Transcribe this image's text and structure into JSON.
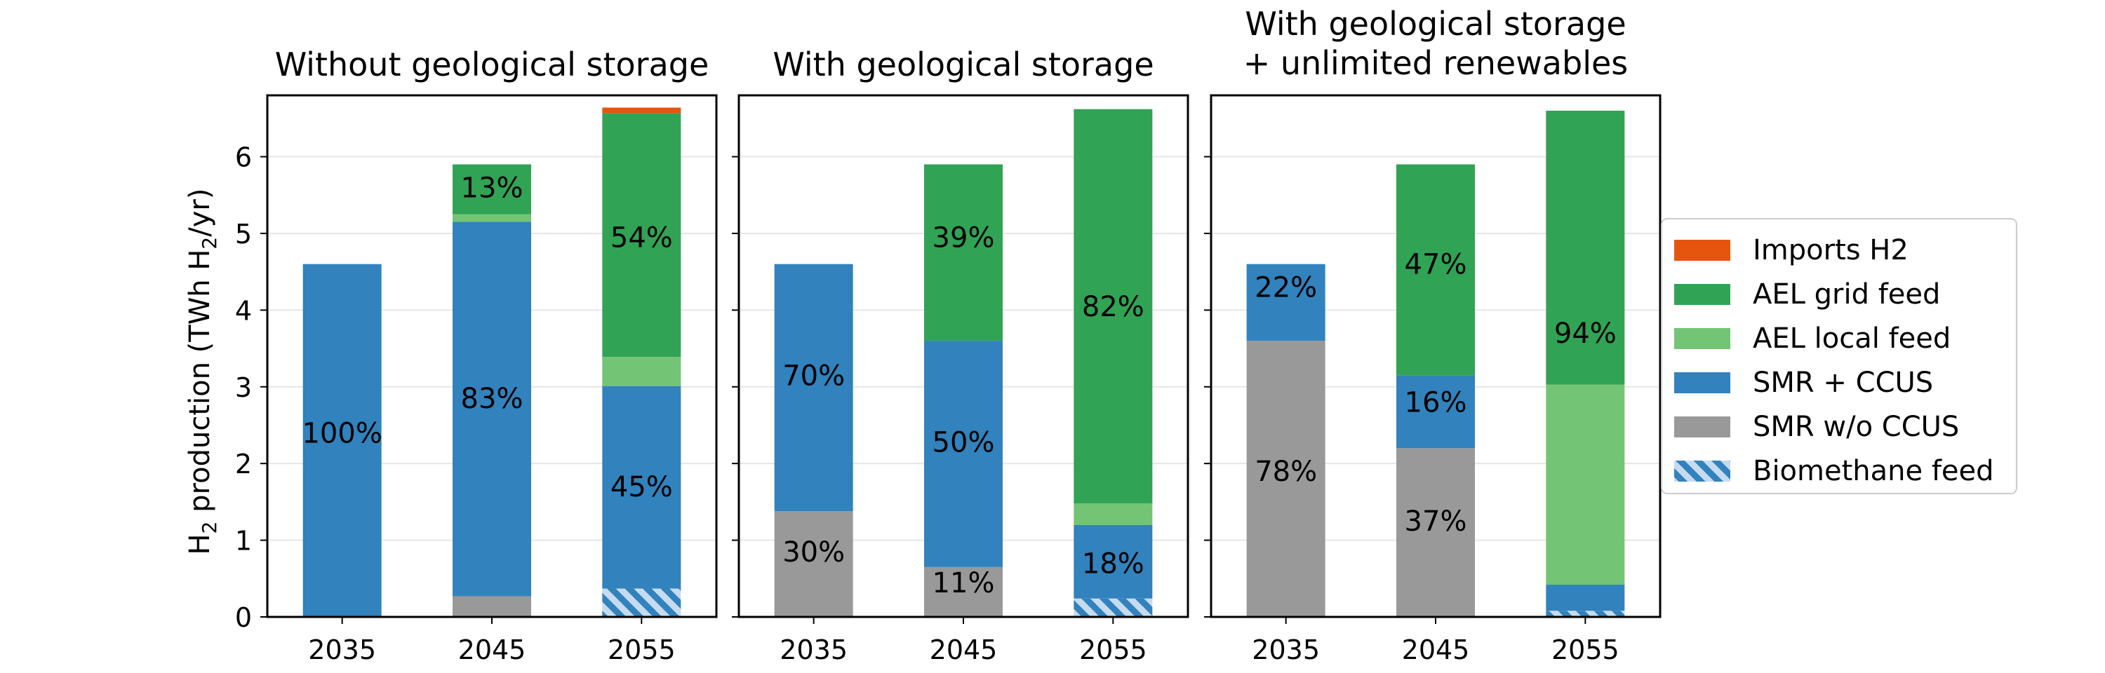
{
  "figure": {
    "ylabel_main": "H",
    "ylabel_sub": "2",
    "ylabel_rest": " production  (TWh H",
    "ylabel_sub2": "2",
    "ylabel_end": "/yr)"
  },
  "chart_data": [
    {
      "type": "bar",
      "stacked": true,
      "title_lines": [
        "Without geological storage"
      ],
      "categories": [
        "2035",
        "2045",
        "2055"
      ],
      "ylim": [
        0,
        6.8
      ],
      "yticks": [
        0,
        1,
        2,
        3,
        4,
        5,
        6
      ],
      "grid": true,
      "series": [
        {
          "name": "SMR w/o CCUS",
          "color": "#999999",
          "values": [
            0,
            0.27,
            0
          ]
        },
        {
          "name": "Biomethane feed",
          "color": "#c6dbef",
          "hatch": true,
          "values": [
            0,
            0,
            0.37
          ]
        },
        {
          "name": "SMR + CCUS",
          "color": "#3182bd",
          "values": [
            4.6,
            4.88,
            2.64
          ]
        },
        {
          "name": "AEL local feed",
          "color": "#74c476",
          "values": [
            0,
            0.1,
            0.38
          ]
        },
        {
          "name": "AEL grid feed",
          "color": "#31a354",
          "values": [
            0,
            0.65,
            3.18
          ]
        },
        {
          "name": "Imports H2",
          "color": "#e6550d",
          "values": [
            0,
            0,
            0.07
          ]
        }
      ],
      "labels": [
        {
          "category": 0,
          "y": 2.4,
          "text": "100%"
        },
        {
          "category": 1,
          "y": 2.85,
          "text": "83%"
        },
        {
          "category": 1,
          "y": 5.6,
          "text": "13%"
        },
        {
          "category": 2,
          "y": 1.7,
          "text": "45%"
        },
        {
          "category": 2,
          "y": 4.95,
          "text": "54%"
        }
      ]
    },
    {
      "type": "bar",
      "stacked": true,
      "title_lines": [
        "With geological storage"
      ],
      "categories": [
        "2035",
        "2045",
        "2055"
      ],
      "ylim": [
        0,
        6.8
      ],
      "yticks": [
        0,
        1,
        2,
        3,
        4,
        5,
        6
      ],
      "grid": true,
      "series": [
        {
          "name": "SMR w/o CCUS",
          "color": "#999999",
          "values": [
            1.38,
            0.65,
            0
          ]
        },
        {
          "name": "Biomethane feed",
          "color": "#c6dbef",
          "hatch": true,
          "values": [
            0,
            0,
            0.24
          ]
        },
        {
          "name": "SMR + CCUS",
          "color": "#3182bd",
          "values": [
            3.22,
            2.95,
            0.96
          ]
        },
        {
          "name": "AEL local feed",
          "color": "#74c476",
          "values": [
            0,
            0,
            0.28
          ]
        },
        {
          "name": "AEL grid feed",
          "color": "#31a354",
          "values": [
            0,
            2.3,
            5.14
          ]
        },
        {
          "name": "Imports H2",
          "color": "#e6550d",
          "values": [
            0,
            0,
            0
          ]
        }
      ],
      "labels": [
        {
          "category": 0,
          "y": 0.85,
          "text": "30%"
        },
        {
          "category": 0,
          "y": 3.15,
          "text": "70%"
        },
        {
          "category": 1,
          "y": 0.45,
          "text": "11%"
        },
        {
          "category": 1,
          "y": 2.28,
          "text": "50%"
        },
        {
          "category": 1,
          "y": 4.95,
          "text": "39%"
        },
        {
          "category": 2,
          "y": 0.7,
          "text": "18%"
        },
        {
          "category": 2,
          "y": 4.05,
          "text": "82%"
        }
      ]
    },
    {
      "type": "bar",
      "stacked": true,
      "title_lines": [
        "With geological storage",
        " + unlimited renewables"
      ],
      "categories": [
        "2035",
        "2045",
        "2055"
      ],
      "ylim": [
        0,
        6.8
      ],
      "yticks": [
        0,
        1,
        2,
        3,
        4,
        5,
        6
      ],
      "grid": true,
      "series": [
        {
          "name": "SMR w/o CCUS",
          "color": "#999999",
          "values": [
            3.6,
            2.2,
            0
          ]
        },
        {
          "name": "Biomethane feed",
          "color": "#c6dbef",
          "hatch": true,
          "values": [
            0,
            0,
            0.08
          ]
        },
        {
          "name": "SMR + CCUS",
          "color": "#3182bd",
          "values": [
            1.0,
            0.95,
            0.34
          ]
        },
        {
          "name": "AEL local feed",
          "color": "#74c476",
          "values": [
            0,
            0,
            2.61
          ]
        },
        {
          "name": "AEL grid feed",
          "color": "#31a354",
          "values": [
            0,
            2.75,
            3.57
          ]
        },
        {
          "name": "Imports H2",
          "color": "#e6550d",
          "values": [
            0,
            0,
            0
          ]
        }
      ],
      "labels": [
        {
          "category": 0,
          "y": 1.9,
          "text": "78%"
        },
        {
          "category": 0,
          "y": 4.3,
          "text": "22%"
        },
        {
          "category": 1,
          "y": 1.25,
          "text": "37%"
        },
        {
          "category": 1,
          "y": 2.8,
          "text": "16%"
        },
        {
          "category": 1,
          "y": 4.6,
          "text": "47%"
        },
        {
          "category": 2,
          "y": 3.7,
          "text": "94%"
        }
      ]
    }
  ],
  "legend": {
    "placement": "right",
    "items": [
      {
        "label": "Imports H2",
        "color": "#e6550d",
        "hatch": false
      },
      {
        "label": "AEL grid feed",
        "color": "#31a354",
        "hatch": false
      },
      {
        "label": "AEL local feed",
        "color": "#74c476",
        "hatch": false
      },
      {
        "label": "SMR + CCUS",
        "color": "#3182bd",
        "hatch": false
      },
      {
        "label": "SMR w/o CCUS",
        "color": "#999999",
        "hatch": false
      },
      {
        "label": "Biomethane feed",
        "color": "#c6dbef",
        "hatch": true
      }
    ]
  }
}
